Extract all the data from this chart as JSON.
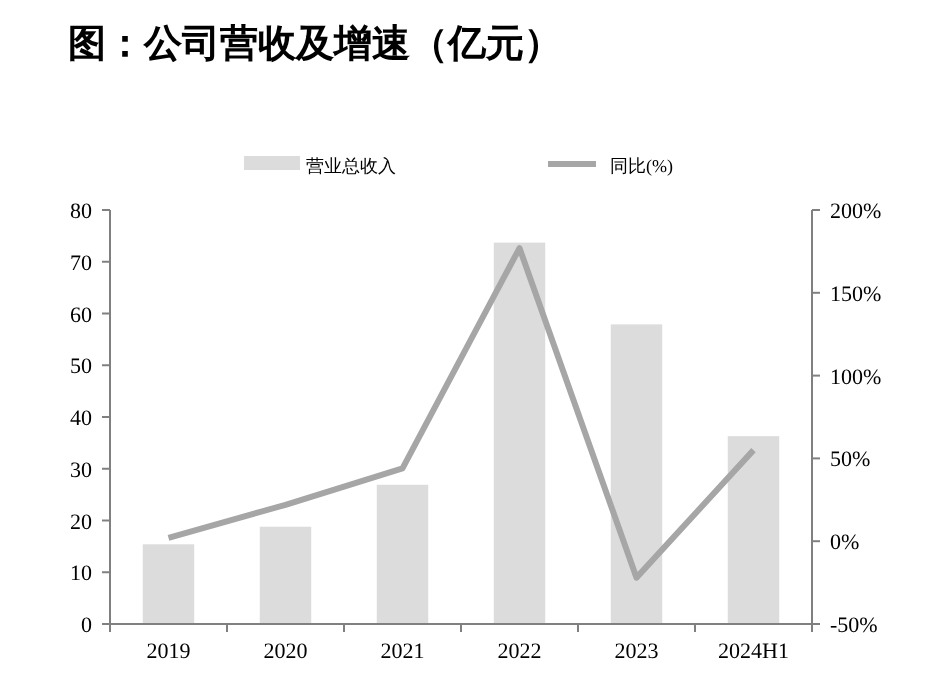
{
  "chart_data": {
    "type": "bar",
    "title": "图：公司营收及增速（亿元）",
    "categories": [
      "2019",
      "2020",
      "2021",
      "2022",
      "2023",
      "2024H1"
    ],
    "series": [
      {
        "name": "营业总收入",
        "color": "#dcdcdc",
        "values": [
          15.4,
          18.8,
          26.9,
          73.7,
          57.9,
          36.3
        ]
      },
      {
        "name": "同比(%)",
        "type": "line",
        "axis": "y2",
        "color": "#a6a6a6",
        "values": [
          2,
          22,
          44,
          177,
          -22,
          55
        ]
      }
    ],
    "ylim": [
      0,
      80
    ],
    "yticks": [
      0,
      10,
      20,
      30,
      40,
      50,
      60,
      70,
      80
    ],
    "y2lim": [
      -50,
      200
    ],
    "y2ticks": [
      {
        "value": -50,
        "label": "-50%"
      },
      {
        "value": 0,
        "label": "0%"
      },
      {
        "value": 50,
        "label": "50%"
      },
      {
        "value": 100,
        "label": "100%"
      },
      {
        "value": 150,
        "label": "150%"
      },
      {
        "value": 200,
        "label": "200%"
      }
    ],
    "legend": "top",
    "grid": false
  }
}
